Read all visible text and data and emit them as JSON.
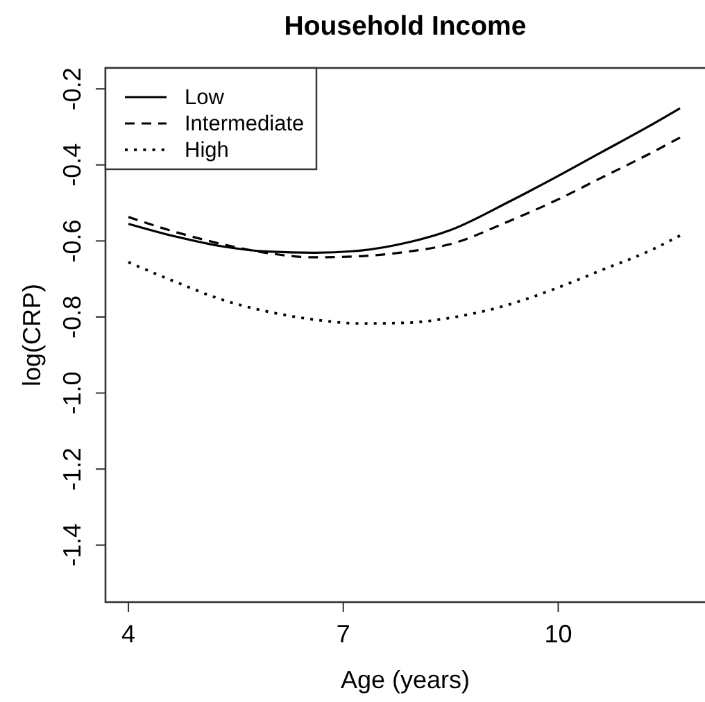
{
  "chart_data": {
    "type": "line",
    "title": "Household Income",
    "xlabel": "Age (years)",
    "ylabel": "log(CRP)",
    "x": [
      4,
      4.65,
      5.3,
      5.95,
      6.6,
      7.25,
      7.9,
      8.5,
      9.3,
      9.95,
      10.6,
      11.25,
      11.7
    ],
    "series": [
      {
        "name": "Low",
        "color": "#000000",
        "line_style": "solid",
        "values": [
          -0.555,
          -0.588,
          -0.614,
          -0.628,
          -0.631,
          -0.625,
          -0.604,
          -0.571,
          -0.498,
          -0.434,
          -0.367,
          -0.3,
          -0.251
        ]
      },
      {
        "name": "Intermediate",
        "color": "#000000",
        "line_style": "dashed",
        "values": [
          -0.537,
          -0.576,
          -0.608,
          -0.632,
          -0.643,
          -0.64,
          -0.628,
          -0.608,
          -0.549,
          -0.495,
          -0.434,
          -0.373,
          -0.328
        ]
      },
      {
        "name": "High",
        "color": "#000000",
        "line_style": "dotted",
        "values": [
          -0.656,
          -0.707,
          -0.754,
          -0.786,
          -0.807,
          -0.817,
          -0.815,
          -0.802,
          -0.768,
          -0.726,
          -0.677,
          -0.628,
          -0.586
        ]
      }
    ],
    "xlim": [
      3.68,
      12.32
    ],
    "ylim": [
      -1.55,
      -0.145
    ],
    "xticks": [
      4,
      7,
      10
    ],
    "yticks": [
      -0.2,
      -0.4,
      -0.6,
      -0.8,
      {
        "value": -1,
        "label": "-1.0"
      },
      -1.2,
      -1.4
    ],
    "legend": "top left",
    "grid": false,
    "marker": "none"
  }
}
